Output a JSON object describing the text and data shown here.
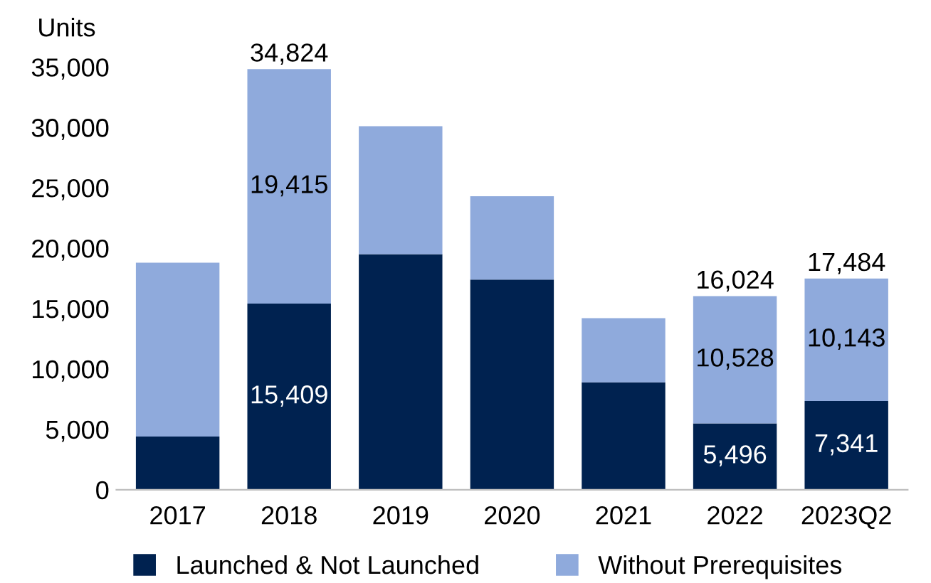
{
  "chart_data": {
    "type": "bar",
    "stacked": true,
    "ylabel": "Units",
    "categories": [
      "2017",
      "2018",
      "2019",
      "2020",
      "2021",
      "2022",
      "2023Q2"
    ],
    "series": [
      {
        "name": "Launched & Not Launched",
        "color": "#002250",
        "values": [
          4400,
          15409,
          19500,
          17400,
          8900,
          5496,
          7341
        ],
        "value_labels": [
          null,
          "15,409",
          null,
          null,
          null,
          "5,496",
          "7,341"
        ]
      },
      {
        "name": "Without Prerequisites",
        "color": "#8faadc",
        "values": [
          14400,
          19415,
          10600,
          6900,
          5300,
          10528,
          10143
        ],
        "value_labels": [
          null,
          "19,415",
          null,
          null,
          null,
          "10,528",
          "10,143"
        ]
      }
    ],
    "totals": [
      null,
      "34,824",
      null,
      null,
      null,
      "16,024",
      "17,484"
    ],
    "ylim": [
      0,
      35000
    ],
    "yticks": [
      {
        "value": 0,
        "label": "0"
      },
      {
        "value": 5000,
        "label": "5,000"
      },
      {
        "value": 10000,
        "label": "10,000"
      },
      {
        "value": 15000,
        "label": "15,000"
      },
      {
        "value": 20000,
        "label": "20,000"
      },
      {
        "value": 25000,
        "label": "25,000"
      },
      {
        "value": 30000,
        "label": "30,000"
      },
      {
        "value": 35000,
        "label": "35,000"
      }
    ],
    "grid": false,
    "legend": "bottom"
  }
}
